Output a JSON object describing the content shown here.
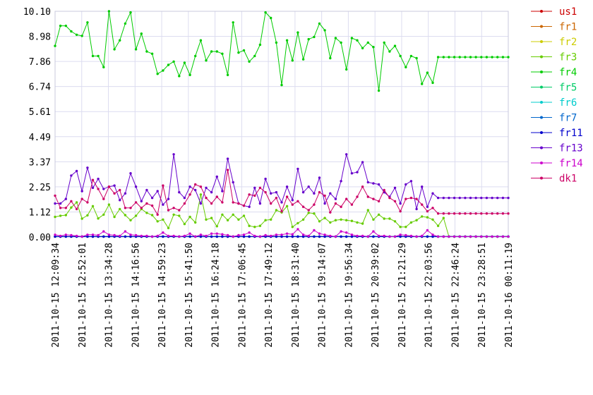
{
  "chart_data": {
    "type": "line",
    "title": "",
    "xlabel": "",
    "ylabel": "",
    "ylim": [
      0,
      10.1
    ],
    "y_ticks": [
      "0.00",
      "1.12",
      "2.25",
      "3.37",
      "4.49",
      "5.61",
      "6.74",
      "7.86",
      "8.98",
      "10.10"
    ],
    "x_tick_labels": [
      "2011-10-15 12:09:34",
      "2011-10-15 12:52:01",
      "2011-10-15 13:34:28",
      "2011-10-15 14:16:56",
      "2011-10-15 14:59:23",
      "2011-10-15 15:41:50",
      "2011-10-15 16:24:18",
      "2011-10-15 17:06:45",
      "2011-10-15 17:49:12",
      "2011-10-15 18:31:40",
      "2011-10-15 19:14:07",
      "2011-10-15 19:56:34",
      "2011-10-15 20:39:02",
      "2011-10-15 21:21:29",
      "2011-10-15 22:03:56",
      "2011-10-15 22:46:24",
      "2011-10-15 23:28:51",
      "2011-10-16 00:11:19"
    ],
    "grid": true,
    "legend_position": "right",
    "series": [
      {
        "name": "us1",
        "color": "#cc0000",
        "values": [
          0.02,
          0.02,
          0.02,
          0.02,
          0.02,
          0.02,
          0.02,
          0.02,
          0.02,
          0.02,
          0.02,
          0.02,
          0.02,
          0.02,
          0.02,
          0.02,
          0.02,
          0.02,
          0.02,
          0.02,
          0.02,
          0.02,
          0.02,
          0.02,
          0.02,
          0.02,
          0.02,
          0.02,
          0.02,
          0.02,
          0.02,
          0.02,
          0.02,
          0.02,
          0.02,
          0.02,
          0.02,
          0.02,
          0.02,
          0.02,
          0.02,
          0.02,
          0.02,
          0.02,
          0.02,
          0.02,
          0.02,
          0.02,
          0.02,
          0.02,
          0.02,
          0.02,
          0.02,
          0.02,
          0.02,
          0.02,
          0.02,
          0.02,
          0.02,
          0.02,
          0.02,
          0.02,
          0.02,
          0.02,
          0.02,
          0.02,
          0.02,
          0.02,
          0.02,
          0.02,
          0.02,
          0.02,
          0.02,
          0.02,
          0.02,
          0.02,
          0.02,
          0.02,
          0.02,
          0.02,
          0.02,
          0.02,
          0.02,
          0.02,
          0.02
        ]
      },
      {
        "name": "fr1",
        "color": "#cc6600",
        "values": [
          0.02,
          0.02,
          0.02,
          0.02,
          0.02,
          0.02,
          0.02,
          0.02,
          0.02,
          0.02,
          0.02,
          0.02,
          0.02,
          0.02,
          0.02,
          0.02,
          0.02,
          0.02,
          0.02,
          0.02,
          0.02,
          0.02,
          0.02,
          0.02,
          0.02,
          0.02,
          0.02,
          0.02,
          0.02,
          0.02,
          0.02,
          0.02,
          0.02,
          0.02,
          0.02,
          0.02,
          0.02,
          0.02,
          0.02,
          0.02,
          0.02,
          0.02,
          0.02,
          0.02,
          0.02,
          0.02,
          0.02,
          0.02,
          0.02,
          0.02,
          0.02,
          0.02,
          0.02,
          0.02,
          0.02,
          0.02,
          0.02,
          0.02,
          0.02,
          0.02,
          0.02,
          0.02,
          0.02,
          0.02,
          0.02,
          0.02,
          0.02,
          0.02,
          0.02,
          0.02,
          0.02,
          0.02,
          0.02,
          0.02,
          0.02,
          0.02,
          0.02,
          0.02,
          0.02,
          0.02,
          0.02,
          0.02,
          0.02,
          0.02,
          0.02
        ]
      },
      {
        "name": "fr2",
        "color": "#cccc00",
        "values": [
          0.02,
          0.02,
          0.02,
          0.02,
          0.02,
          0.02,
          0.02,
          0.02,
          0.02,
          0.02,
          0.02,
          0.02,
          0.02,
          0.02,
          0.02,
          0.02,
          0.02,
          0.02,
          0.02,
          0.02,
          0.02,
          0.02,
          0.02,
          0.02,
          0.02,
          0.02,
          0.02,
          0.02,
          0.02,
          0.02,
          0.02,
          0.02,
          0.02,
          0.02,
          0.02,
          0.02,
          0.02,
          0.02,
          0.02,
          0.02,
          0.02,
          0.02,
          0.02,
          0.02,
          0.02,
          0.02,
          0.02,
          0.02,
          0.02,
          0.02,
          0.02,
          0.02,
          0.02,
          0.02,
          0.02,
          0.02,
          0.02,
          0.02,
          0.02,
          0.02,
          0.02,
          0.02,
          0.02,
          0.02,
          0.02,
          0.02,
          0.02,
          0.02,
          0.02,
          0.02,
          0.02,
          0.02,
          0.02,
          0.02,
          0.02,
          0.02,
          0.02,
          0.02,
          0.02,
          0.02,
          0.02,
          0.02,
          0.02,
          0.02,
          0.02
        ]
      },
      {
        "name": "fr3",
        "color": "#66cc00",
        "values": [
          0.9,
          0.95,
          0.98,
          1.32,
          1.55,
          0.82,
          0.97,
          1.38,
          0.83,
          1.0,
          1.45,
          0.9,
          1.25,
          0.98,
          0.75,
          0.95,
          1.25,
          1.08,
          0.98,
          0.7,
          0.78,
          0.4,
          1.0,
          0.95,
          0.58,
          0.9,
          0.65,
          1.9,
          0.78,
          0.85,
          0.48,
          1.0,
          0.75,
          1.0,
          0.78,
          0.95,
          0.5,
          0.45,
          0.5,
          0.75,
          0.78,
          1.2,
          1.1,
          1.38,
          0.45,
          0.62,
          0.78,
          1.08,
          1.05,
          0.7,
          0.85,
          0.65,
          0.75,
          0.78,
          0.75,
          0.72,
          0.65,
          0.6,
          1.2,
          0.78,
          1.0,
          0.82,
          0.82,
          0.7,
          0.45,
          0.45,
          0.65,
          0.75,
          0.92,
          0.88,
          0.78,
          0.5,
          0.85,
          0.02,
          0.02,
          0.02,
          0.02,
          0.02,
          0.02,
          0.02,
          0.02,
          0.02,
          0.02,
          0.02,
          0.02
        ]
      },
      {
        "name": "fr4",
        "color": "#00cc00",
        "values": [
          8.55,
          9.45,
          9.45,
          9.2,
          9.05,
          9.0,
          9.6,
          8.1,
          8.1,
          7.6,
          10.1,
          8.4,
          8.8,
          9.55,
          10.05,
          8.4,
          9.1,
          8.3,
          8.2,
          7.3,
          7.45,
          7.7,
          7.85,
          7.2,
          7.8,
          7.25,
          8.1,
          8.8,
          7.9,
          8.3,
          8.3,
          8.2,
          7.25,
          9.6,
          8.25,
          8.35,
          7.85,
          8.1,
          8.6,
          10.05,
          9.8,
          8.7,
          6.8,
          8.8,
          7.9,
          9.15,
          7.95,
          8.85,
          8.95,
          9.55,
          9.25,
          8.0,
          8.9,
          8.7,
          7.5,
          8.9,
          8.8,
          8.45,
          8.7,
          8.5,
          6.55,
          8.7,
          8.3,
          8.55,
          8.1,
          7.6,
          8.1,
          8.0,
          6.85,
          7.35,
          6.9,
          8.05,
          8.05,
          8.05,
          8.05,
          8.05,
          8.05,
          8.05,
          8.05,
          8.05,
          8.05,
          8.05,
          8.05,
          8.05,
          8.05
        ]
      },
      {
        "name": "fr5",
        "color": "#00cc66",
        "values": [
          0.02,
          0.02,
          0.02,
          0.02,
          0.02,
          0.02,
          0.02,
          0.02,
          0.02,
          0.02,
          0.02,
          0.02,
          0.02,
          0.02,
          0.02,
          0.02,
          0.02,
          0.02,
          0.02,
          0.02,
          0.02,
          0.02,
          0.02,
          0.02,
          0.02,
          0.02,
          0.02,
          0.02,
          0.02,
          0.02,
          0.02,
          0.02,
          0.02,
          0.02,
          0.02,
          0.02,
          0.02,
          0.02,
          0.02,
          0.02,
          0.02,
          0.02,
          0.02,
          0.02,
          0.02,
          0.02,
          0.02,
          0.02,
          0.02,
          0.02,
          0.02,
          0.02,
          0.02,
          0.02,
          0.02,
          0.02,
          0.02,
          0.02,
          0.02,
          0.02,
          0.02,
          0.02,
          0.02,
          0.02,
          0.02,
          0.02,
          0.02,
          0.02,
          0.02,
          0.02,
          0.02,
          0.02,
          0.02,
          0.02,
          0.02,
          0.02,
          0.02,
          0.02,
          0.02,
          0.02,
          0.02,
          0.02,
          0.02,
          0.02,
          0.02
        ]
      },
      {
        "name": "fr6",
        "color": "#00cccc",
        "values": [
          0.02,
          0.02,
          0.02,
          0.02,
          0.02,
          0.02,
          0.02,
          0.02,
          0.02,
          0.02,
          0.02,
          0.02,
          0.02,
          0.02,
          0.02,
          0.02,
          0.02,
          0.02,
          0.02,
          0.02,
          0.02,
          0.02,
          0.02,
          0.02,
          0.02,
          0.02,
          0.02,
          0.02,
          0.02,
          0.02,
          0.02,
          0.02,
          0.02,
          0.02,
          0.02,
          0.02,
          0.02,
          0.02,
          0.02,
          0.02,
          0.02,
          0.02,
          0.02,
          0.02,
          0.02,
          0.02,
          0.02,
          0.02,
          0.02,
          0.02,
          0.02,
          0.02,
          0.02,
          0.02,
          0.02,
          0.02,
          0.02,
          0.02,
          0.02,
          0.02,
          0.02,
          0.02,
          0.02,
          0.02,
          0.02,
          0.02,
          0.02,
          0.02,
          0.02,
          0.02,
          0.02,
          0.02,
          0.02,
          0.02,
          0.02,
          0.02,
          0.02,
          0.02,
          0.02,
          0.02,
          0.02,
          0.02,
          0.02,
          0.02,
          0.02
        ]
      },
      {
        "name": "fr7",
        "color": "#0066cc",
        "values": [
          0.02,
          0.02,
          0.02,
          0.02,
          0.02,
          0.02,
          0.02,
          0.02,
          0.02,
          0.02,
          0.02,
          0.02,
          0.02,
          0.02,
          0.02,
          0.02,
          0.02,
          0.02,
          0.02,
          0.02,
          0.02,
          0.02,
          0.02,
          0.02,
          0.02,
          0.02,
          0.02,
          0.02,
          0.02,
          0.02,
          0.02,
          0.02,
          0.02,
          0.02,
          0.02,
          0.02,
          0.02,
          0.02,
          0.02,
          0.02,
          0.02,
          0.02,
          0.02,
          0.02,
          0.02,
          0.02,
          0.02,
          0.02,
          0.02,
          0.02,
          0.02,
          0.02,
          0.02,
          0.02,
          0.02,
          0.02,
          0.02,
          0.02,
          0.02,
          0.02,
          0.02,
          0.02,
          0.02,
          0.02,
          0.02,
          0.02,
          0.02,
          0.02,
          0.02,
          0.02,
          0.02,
          0.02,
          0.02,
          0.02,
          0.02,
          0.02,
          0.02,
          0.02,
          0.02,
          0.02,
          0.02,
          0.02,
          0.02,
          0.02,
          0.02
        ]
      },
      {
        "name": "fr11",
        "color": "#0000cc",
        "values": [
          0.02,
          0.02,
          0.02,
          0.02,
          0.02,
          0.02,
          0.02,
          0.02,
          0.02,
          0.02,
          0.02,
          0.02,
          0.02,
          0.02,
          0.02,
          0.02,
          0.02,
          0.02,
          0.02,
          0.02,
          0.02,
          0.02,
          0.02,
          0.02,
          0.02,
          0.02,
          0.02,
          0.02,
          0.02,
          0.02,
          0.02,
          0.02,
          0.02,
          0.02,
          0.02,
          0.02,
          0.02,
          0.02,
          0.02,
          0.02,
          0.02,
          0.02,
          0.02,
          0.02,
          0.02,
          0.02,
          0.02,
          0.02,
          0.02,
          0.02,
          0.02,
          0.02,
          0.02,
          0.02,
          0.02,
          0.02,
          0.02,
          0.02,
          0.02,
          0.02,
          0.02,
          0.02,
          0.02,
          0.02,
          0.02,
          0.02,
          0.02,
          0.02,
          0.02,
          0.02,
          0.02,
          0.02,
          0.02,
          0.02,
          0.02,
          0.02,
          0.02,
          0.02,
          0.02,
          0.02,
          0.02,
          0.02,
          0.02,
          0.02,
          0.02
        ]
      },
      {
        "name": "fr13",
        "color": "#6600cc",
        "values": [
          1.5,
          1.5,
          1.7,
          2.75,
          2.95,
          2.05,
          3.1,
          2.2,
          2.6,
          2.15,
          2.25,
          2.3,
          1.65,
          1.95,
          2.85,
          2.25,
          1.6,
          2.1,
          1.75,
          2.05,
          1.45,
          1.7,
          3.7,
          2.0,
          1.75,
          2.25,
          2.1,
          1.5,
          2.2,
          2.0,
          2.7,
          2.05,
          3.5,
          2.45,
          1.5,
          1.4,
          1.35,
          2.2,
          1.5,
          2.6,
          1.95,
          2.0,
          1.55,
          2.25,
          1.65,
          3.05,
          2.0,
          2.25,
          1.95,
          2.65,
          1.5,
          1.95,
          1.7,
          2.5,
          3.7,
          2.85,
          2.9,
          3.35,
          2.45,
          2.4,
          2.35,
          2.0,
          1.8,
          2.2,
          1.5,
          2.35,
          2.5,
          1.25,
          2.25,
          1.35,
          1.95,
          1.75,
          1.75,
          1.75,
          1.75,
          1.75,
          1.75,
          1.75,
          1.75,
          1.75,
          1.75,
          1.75,
          1.75,
          1.75,
          1.75
        ]
      },
      {
        "name": "fr14",
        "color": "#cc00cc",
        "values": [
          0.1,
          0.05,
          0.1,
          0.08,
          0.05,
          0.02,
          0.1,
          0.1,
          0.08,
          0.25,
          0.1,
          0.08,
          0.05,
          0.25,
          0.1,
          0.08,
          0.05,
          0.05,
          0.02,
          0.05,
          0.2,
          0.05,
          0.05,
          0.02,
          0.05,
          0.15,
          0.02,
          0.1,
          0.05,
          0.15,
          0.15,
          0.12,
          0.08,
          0.02,
          0.08,
          0.1,
          0.2,
          0.05,
          0.02,
          0.08,
          0.05,
          0.1,
          0.1,
          0.15,
          0.12,
          0.35,
          0.1,
          0.05,
          0.3,
          0.15,
          0.1,
          0.05,
          0.02,
          0.25,
          0.2,
          0.1,
          0.05,
          0.05,
          0.02,
          0.25,
          0.05,
          0.05,
          0.02,
          0.02,
          0.1,
          0.08,
          0.05,
          0.02,
          0.05,
          0.3,
          0.1,
          0.02,
          0.02,
          0.02,
          0.02,
          0.02,
          0.02,
          0.02,
          0.02,
          0.02,
          0.02,
          0.02,
          0.02,
          0.02,
          0.02
        ]
      },
      {
        "name": "dk1",
        "color": "#cc0066",
        "values": [
          1.85,
          1.3,
          1.3,
          1.6,
          1.25,
          1.7,
          1.55,
          2.55,
          2.15,
          1.7,
          2.25,
          1.95,
          2.1,
          1.3,
          1.3,
          1.55,
          1.3,
          1.5,
          1.4,
          1.0,
          2.3,
          1.2,
          1.3,
          1.2,
          1.5,
          1.9,
          2.35,
          2.25,
          1.75,
          1.5,
          1.8,
          1.55,
          3.0,
          1.55,
          1.5,
          1.4,
          1.9,
          1.85,
          2.2,
          2.0,
          1.5,
          1.75,
          1.15,
          1.8,
          1.45,
          1.6,
          1.35,
          1.2,
          1.45,
          2.0,
          1.85,
          1.1,
          1.5,
          1.35,
          1.7,
          1.45,
          1.8,
          2.25,
          1.8,
          1.7,
          1.6,
          2.1,
          1.75,
          1.6,
          1.15,
          1.7,
          1.75,
          1.7,
          1.45,
          1.15,
          1.3,
          1.05,
          1.05,
          1.05,
          1.05,
          1.05,
          1.05,
          1.05,
          1.05,
          1.05,
          1.05,
          1.05,
          1.05,
          1.05,
          1.05
        ]
      }
    ]
  }
}
